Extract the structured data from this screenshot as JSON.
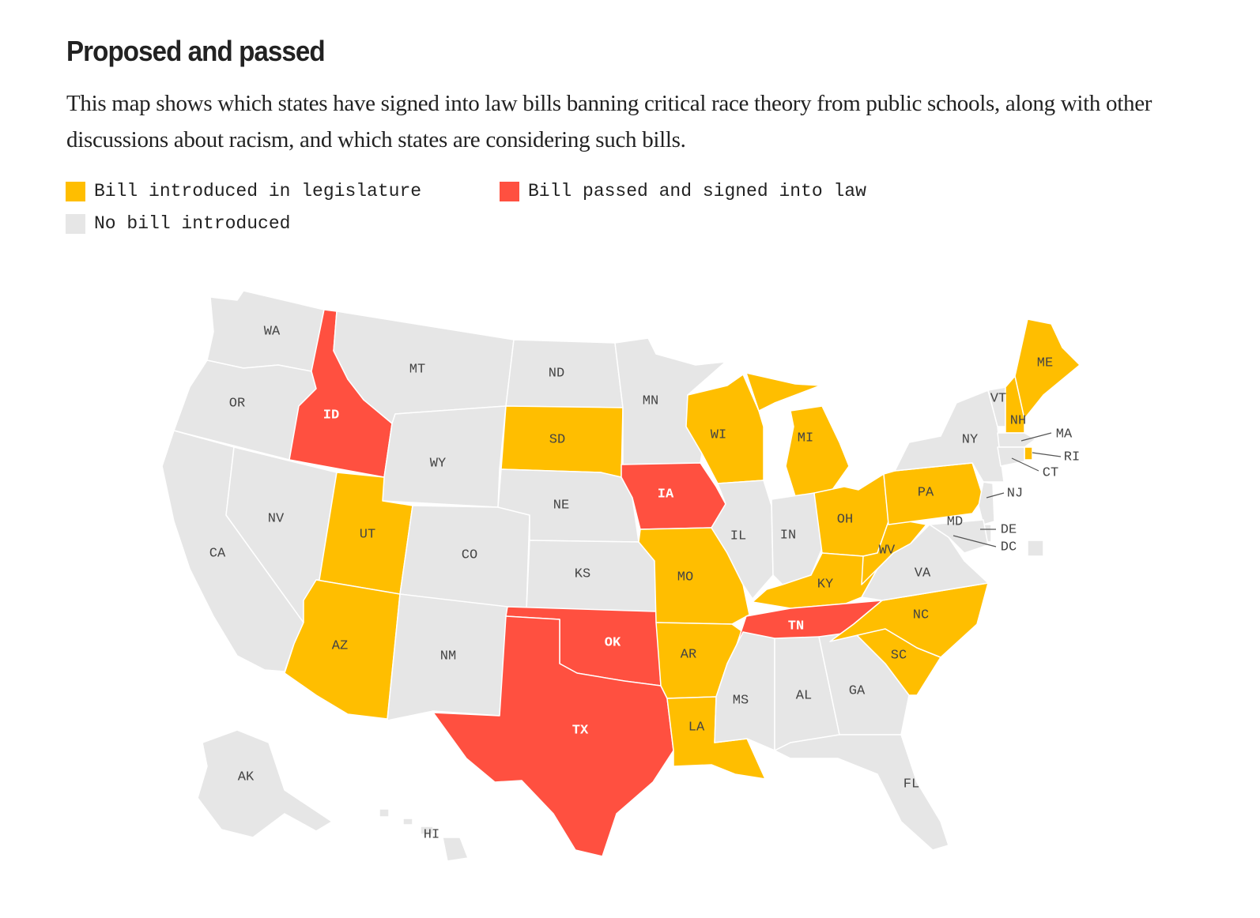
{
  "title": "Proposed and passed",
  "subtitle": "This map shows which states have signed into law bills banning critical race theory from public schools, along with other discussions about racism, and which states are considering such bills.",
  "colors": {
    "introduced": "#FFBE00",
    "passed": "#FF5040",
    "none": "#E6E6E6",
    "label_dark": "#444444",
    "label_light": "#FFFFFF"
  },
  "legend": [
    {
      "key": "introduced",
      "label": "Bill introduced in legislature"
    },
    {
      "key": "passed",
      "label": "Bill passed and signed into law"
    },
    {
      "key": "none",
      "label": "No bill introduced"
    }
  ],
  "states": [
    {
      "abbr": "WA",
      "status": "none"
    },
    {
      "abbr": "OR",
      "status": "none"
    },
    {
      "abbr": "CA",
      "status": "none"
    },
    {
      "abbr": "NV",
      "status": "none"
    },
    {
      "abbr": "ID",
      "status": "passed"
    },
    {
      "abbr": "MT",
      "status": "none"
    },
    {
      "abbr": "WY",
      "status": "none"
    },
    {
      "abbr": "UT",
      "status": "introduced"
    },
    {
      "abbr": "AZ",
      "status": "introduced"
    },
    {
      "abbr": "CO",
      "status": "none"
    },
    {
      "abbr": "NM",
      "status": "none"
    },
    {
      "abbr": "ND",
      "status": "none"
    },
    {
      "abbr": "SD",
      "status": "introduced"
    },
    {
      "abbr": "NE",
      "status": "none"
    },
    {
      "abbr": "KS",
      "status": "none"
    },
    {
      "abbr": "OK",
      "status": "passed"
    },
    {
      "abbr": "TX",
      "status": "passed"
    },
    {
      "abbr": "MN",
      "status": "none"
    },
    {
      "abbr": "IA",
      "status": "passed"
    },
    {
      "abbr": "MO",
      "status": "introduced"
    },
    {
      "abbr": "AR",
      "status": "introduced"
    },
    {
      "abbr": "LA",
      "status": "introduced"
    },
    {
      "abbr": "WI",
      "status": "introduced"
    },
    {
      "abbr": "IL",
      "status": "none"
    },
    {
      "abbr": "MI",
      "status": "introduced"
    },
    {
      "abbr": "IN",
      "status": "none"
    },
    {
      "abbr": "OH",
      "status": "introduced"
    },
    {
      "abbr": "KY",
      "status": "introduced"
    },
    {
      "abbr": "TN",
      "status": "passed"
    },
    {
      "abbr": "MS",
      "status": "none"
    },
    {
      "abbr": "AL",
      "status": "none"
    },
    {
      "abbr": "GA",
      "status": "none"
    },
    {
      "abbr": "FL",
      "status": "none"
    },
    {
      "abbr": "SC",
      "status": "introduced"
    },
    {
      "abbr": "NC",
      "status": "introduced"
    },
    {
      "abbr": "VA",
      "status": "none"
    },
    {
      "abbr": "WV",
      "status": "introduced"
    },
    {
      "abbr": "PA",
      "status": "introduced"
    },
    {
      "abbr": "NY",
      "status": "none"
    },
    {
      "abbr": "VT",
      "status": "none"
    },
    {
      "abbr": "NH",
      "status": "introduced"
    },
    {
      "abbr": "ME",
      "status": "introduced"
    },
    {
      "abbr": "MA",
      "status": "none"
    },
    {
      "abbr": "RI",
      "status": "introduced"
    },
    {
      "abbr": "CT",
      "status": "none"
    },
    {
      "abbr": "NJ",
      "status": "none"
    },
    {
      "abbr": "DE",
      "status": "none"
    },
    {
      "abbr": "MD",
      "status": "none"
    },
    {
      "abbr": "DC",
      "status": "none"
    },
    {
      "abbr": "AK",
      "status": "none"
    },
    {
      "abbr": "HI",
      "status": "none"
    }
  ]
}
